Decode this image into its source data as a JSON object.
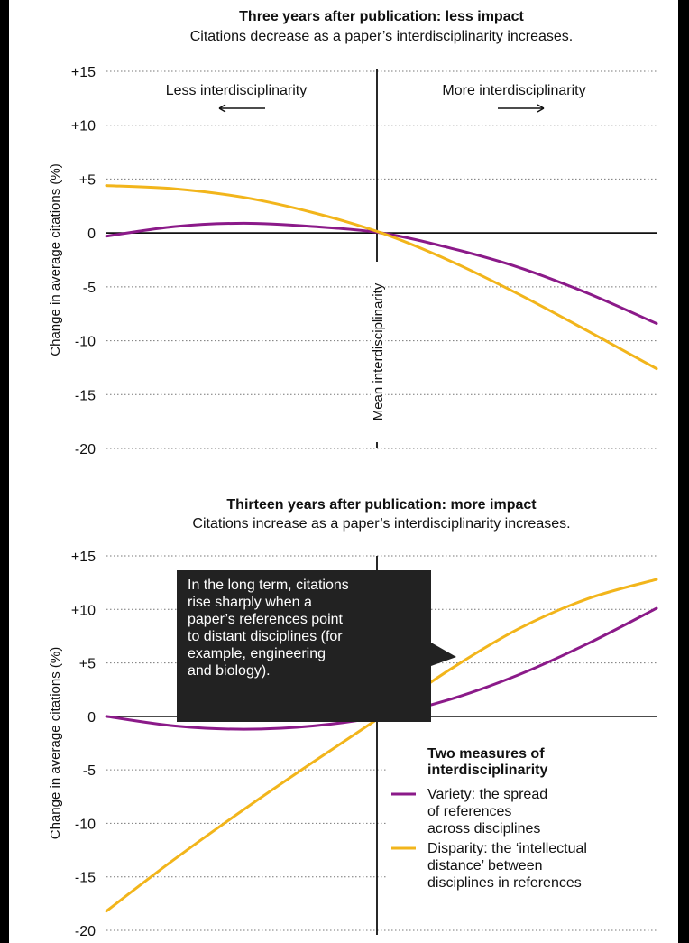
{
  "legend": {
    "title": [
      "Two measures of",
      "interdisciplinarity"
    ],
    "items": [
      {
        "key": "variety",
        "lines": [
          "Variety: the spread",
          "of references",
          "across disciplines"
        ]
      },
      {
        "key": "disparity",
        "lines": [
          "Disparity: the ‘intellectual",
          "distance’ between",
          "disciplines in references"
        ]
      }
    ]
  },
  "chart_data": [
    {
      "type": "line",
      "title": "Three years after publication: less impact",
      "subtitle": "Citations decrease as a paper’s interdisciplinarity increases.",
      "ylabel": "Change in average citations (%)",
      "ylim": [
        -20,
        15
      ],
      "yticks": [
        "+15",
        "+10",
        "+5",
        "0",
        "-5",
        "-10",
        "-15",
        "-20"
      ],
      "ytick_values": [
        15,
        10,
        5,
        0,
        -5,
        -10,
        -15,
        -20
      ],
      "x_range": [
        -1,
        1
      ],
      "grid": true,
      "annotations": {
        "left_label": "Less interdisciplinarity",
        "right_label": "More interdisciplinarity",
        "center_label": "Mean interdisciplinarity"
      },
      "series": [
        {
          "name": "Variety",
          "color": "#8B1A89",
          "x": [
            -1,
            -0.75,
            -0.5,
            -0.25,
            0,
            0.25,
            0.5,
            0.75,
            1
          ],
          "y": [
            -0.3,
            0.6,
            0.9,
            0.6,
            0,
            -1.4,
            -3.2,
            -5.6,
            -8.4
          ]
        },
        {
          "name": "Disparity",
          "color": "#F2B51B",
          "x": [
            -1,
            -0.75,
            -0.5,
            -0.25,
            0,
            0.25,
            0.5,
            0.75,
            1
          ],
          "y": [
            4.4,
            4.1,
            3.3,
            1.9,
            0,
            -2.6,
            -5.7,
            -9.1,
            -12.6
          ]
        }
      ]
    },
    {
      "type": "line",
      "title": "Thirteen years after publication: more impact",
      "subtitle": "Citations increase as a paper’s interdisciplinarity increases.",
      "ylabel": "Change in average citations (%)",
      "ylim": [
        -20,
        15
      ],
      "yticks": [
        "+15",
        "+10",
        "+5",
        "0",
        "-5",
        "-10",
        "-15",
        "-20"
      ],
      "ytick_values": [
        15,
        10,
        5,
        0,
        -5,
        -10,
        -15,
        -20
      ],
      "x_range": [
        -1,
        1
      ],
      "grid": true,
      "annotations": {
        "callout": [
          "In the long term, citations",
          "rise sharply when a",
          "paper’s references point",
          "to distant disciplines (for",
          "example, engineering",
          "and biology)."
        ]
      },
      "series": [
        {
          "name": "Variety",
          "color": "#8B1A89",
          "x": [
            -1,
            -0.75,
            -0.5,
            -0.25,
            0,
            0.25,
            0.5,
            0.75,
            1
          ],
          "y": [
            0,
            -0.9,
            -1.2,
            -0.9,
            0,
            1.6,
            3.9,
            6.8,
            10.1
          ]
        },
        {
          "name": "Disparity",
          "color": "#F2B51B",
          "x": [
            -1,
            -0.75,
            -0.5,
            -0.25,
            0,
            0.25,
            0.5,
            0.75,
            1
          ],
          "y": [
            -18.2,
            -13.3,
            -8.7,
            -4.3,
            0,
            4.4,
            8.2,
            11.0,
            12.8
          ]
        }
      ]
    }
  ]
}
